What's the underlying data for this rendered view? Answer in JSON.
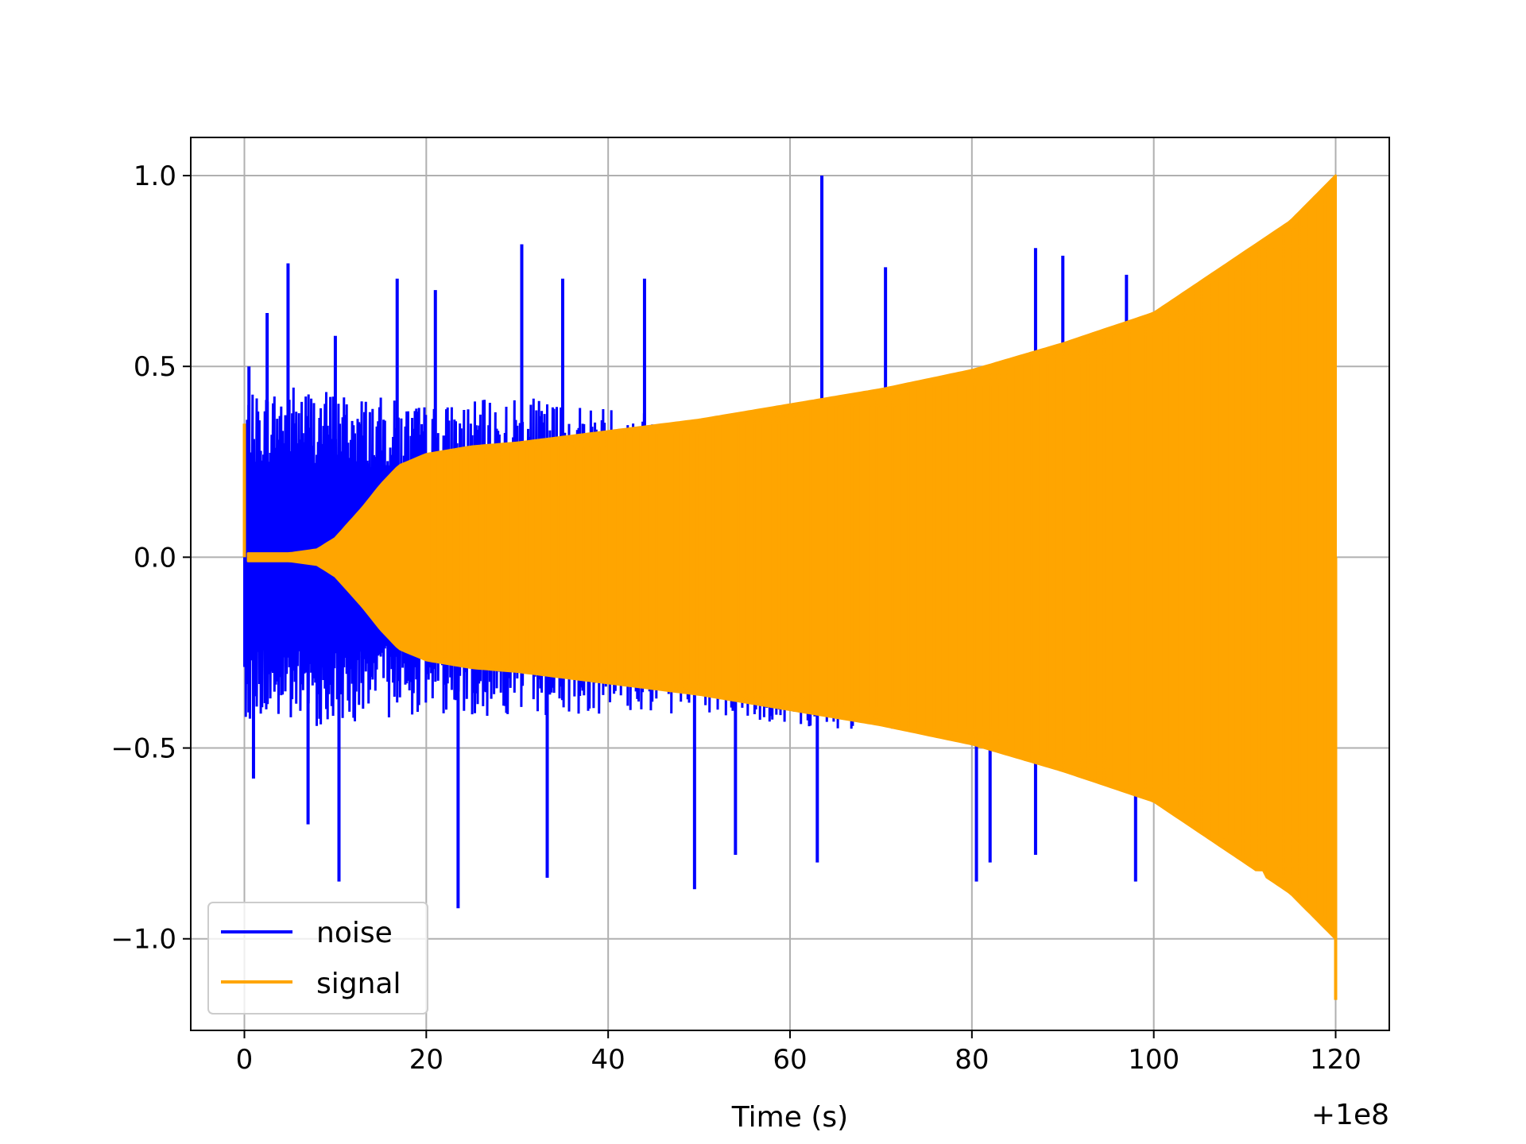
{
  "chart_data": {
    "type": "line",
    "xlabel": "Time (s)",
    "ylabel": "",
    "x_offset_label": "+1e8",
    "xlim": [
      -5.9,
      125.9
    ],
    "ylim": [
      -1.24,
      1.1
    ],
    "xticks": [
      0,
      20,
      40,
      60,
      80,
      100,
      120
    ],
    "xtick_labels": [
      "0",
      "20",
      "40",
      "60",
      "80",
      "100",
      "120"
    ],
    "yticks": [
      -1.0,
      -0.5,
      0.0,
      0.5,
      1.0
    ],
    "ytick_labels": [
      "−1.0",
      "−0.5",
      "0.0",
      "0.5",
      "1.0"
    ],
    "grid": true,
    "legend": {
      "placement": "lower-left"
    },
    "series": [
      {
        "name": "noise",
        "color": "#0000ff",
        "x_range": [
          0,
          120
        ],
        "upper_envelope": [
          [
            0,
            0.42
          ],
          [
            5,
            0.46
          ],
          [
            10,
            0.44
          ],
          [
            20,
            0.4
          ],
          [
            30,
            0.42
          ],
          [
            40,
            0.4
          ],
          [
            50,
            0.37
          ],
          [
            60,
            0.37
          ],
          [
            70,
            0.36
          ],
          [
            80,
            0.36
          ],
          [
            90,
            0.3
          ],
          [
            98.5,
            0.25
          ]
        ],
        "lower_envelope": [
          [
            0,
            -0.42
          ],
          [
            5,
            -0.45
          ],
          [
            10,
            -0.44
          ],
          [
            20,
            -0.41
          ],
          [
            30,
            -0.42
          ],
          [
            40,
            -0.41
          ],
          [
            50,
            -0.42
          ],
          [
            60,
            -0.45
          ],
          [
            70,
            -0.45
          ],
          [
            80,
            -0.46
          ],
          [
            90,
            -0.5
          ],
          [
            98.5,
            -0.55
          ]
        ],
        "peaks": [
          [
            0.5,
            0.5
          ],
          [
            2.5,
            0.64
          ],
          [
            4.8,
            0.77
          ],
          [
            10,
            0.58
          ],
          [
            16.8,
            0.73
          ],
          [
            21,
            0.7
          ],
          [
            30.5,
            0.82
          ],
          [
            35,
            0.73
          ],
          [
            44,
            0.73
          ],
          [
            63.5,
            1.0
          ],
          [
            70.5,
            0.76
          ],
          [
            87,
            0.81
          ],
          [
            90,
            0.79
          ],
          [
            97,
            0.74
          ]
        ],
        "troughs": [
          [
            1,
            -0.58
          ],
          [
            7,
            -0.7
          ],
          [
            10.4,
            -0.85
          ],
          [
            23.5,
            -0.92
          ],
          [
            33.3,
            -0.84
          ],
          [
            49.5,
            -0.87
          ],
          [
            54,
            -0.78
          ],
          [
            63,
            -0.8
          ],
          [
            80.5,
            -0.85
          ],
          [
            82,
            -0.8
          ],
          [
            87,
            -0.78
          ],
          [
            98,
            -0.85
          ]
        ]
      },
      {
        "name": "signal",
        "color": "#ffa500",
        "x_range": [
          0,
          120
        ],
        "envelope": [
          [
            0.4,
            0.01
          ],
          [
            5,
            0.01
          ],
          [
            8,
            0.02
          ],
          [
            10,
            0.05
          ],
          [
            13,
            0.13
          ],
          [
            15,
            0.19
          ],
          [
            17,
            0.24
          ],
          [
            20,
            0.27
          ],
          [
            25,
            0.29
          ],
          [
            30,
            0.3
          ],
          [
            40,
            0.33
          ],
          [
            50,
            0.36
          ],
          [
            60,
            0.4
          ],
          [
            70,
            0.44
          ],
          [
            80,
            0.49
          ],
          [
            90,
            0.56
          ],
          [
            100,
            0.64
          ],
          [
            110,
            0.8
          ],
          [
            115,
            0.88
          ],
          [
            120,
            1.0
          ]
        ],
        "initial_spike": [
          0.0,
          0.35
        ],
        "min_value": -1.16,
        "dip": [
          111.8,
          -0.82
        ]
      }
    ]
  }
}
